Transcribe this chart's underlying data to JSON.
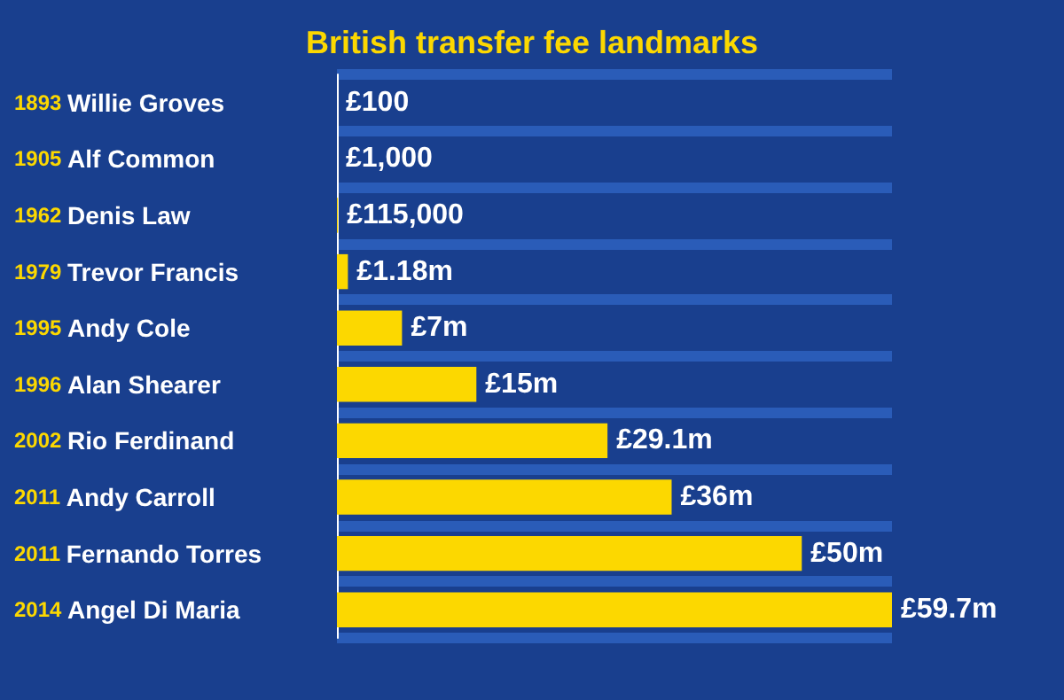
{
  "chart_data": {
    "type": "bar",
    "orientation": "horizontal",
    "title": "British transfer fee landmarks",
    "categories": [
      "1893 Willie Groves",
      "1905 Alf Common",
      "1962 Denis Law",
      "1979 Trevor Francis",
      "1995 Andy Cole",
      "1996 Alan Shearer",
      "2002 Rio Ferdinand",
      "2011 Andy Carroll",
      "2011 Fernando Torres",
      "2014 Angel Di Maria"
    ],
    "values": [
      100,
      1000,
      115000,
      1180000,
      7000000,
      15000000,
      29100000,
      36000000,
      50000000,
      59700000
    ],
    "value_labels": [
      "£100",
      "£1,000",
      "£115,000",
      "£1.18m",
      "£7m",
      "£15m",
      "£29.1m",
      "£36m",
      "£50m",
      "£59.7m"
    ],
    "color": "#fcd800"
  }
}
